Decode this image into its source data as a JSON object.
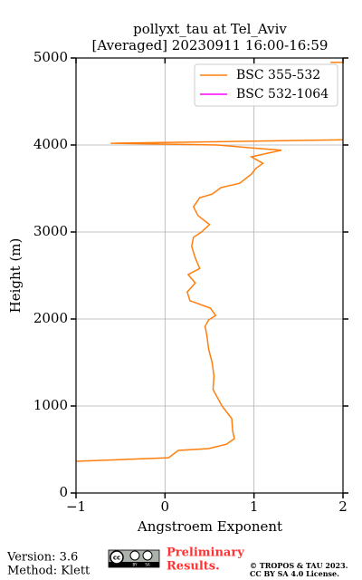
{
  "chart_data": {
    "type": "line",
    "title": [
      "pollyxt_tau at Tel_Aviv",
      "[Averaged] 20230911 16:00-16:59"
    ],
    "x_label": "Angstroem Exponent",
    "y_label": "Height (m)",
    "y": [
      365,
      405,
      490,
      510,
      560,
      625,
      710,
      855,
      1000,
      1190,
      1345,
      1500,
      1655,
      1810,
      1915,
      1990,
      2040,
      2125,
      2210,
      2310,
      2415,
      2510,
      2580,
      2700,
      2835,
      2940,
      3000,
      3085,
      3190,
      3290,
      3395,
      3435,
      3510,
      3560,
      3665,
      3730,
      3790,
      3865,
      3905,
      3940,
      3965,
      4000,
      4020,
      4040,
      4060,
      null,
      4950,
      4950
    ],
    "series": [
      {
        "name": "BSC 355-532",
        "color": "#ff7f0e",
        "values": [
          -1,
          0.04,
          0.15,
          0.49,
          0.69,
          0.78,
          0.76,
          0.75,
          0.64,
          0.54,
          0.55,
          0.53,
          0.49,
          0.47,
          0.45,
          0.49,
          0.57,
          0.51,
          0.28,
          0.25,
          0.34,
          0.26,
          0.39,
          0.34,
          0.3,
          0.32,
          0.41,
          0.5,
          0.37,
          0.32,
          0.39,
          0.53,
          0.63,
          0.84,
          0.97,
          1.02,
          1.1,
          0.97,
          1.15,
          1.31,
          0.99,
          0.59,
          -0.61,
          0.69,
          2.0,
          null,
          1.86,
          2.0
        ]
      },
      {
        "name": "BSC 532-1064",
        "color": "#ff00ff",
        "values": [
          null,
          null,
          null,
          null,
          null,
          null,
          null,
          null,
          null,
          null,
          null,
          null,
          null,
          null,
          null,
          null,
          null,
          null,
          null,
          null,
          null,
          null,
          null,
          null,
          null,
          null,
          null,
          null,
          null,
          null,
          null,
          null,
          null,
          null,
          null,
          null,
          null,
          null,
          null,
          null,
          null,
          null,
          null,
          null,
          null,
          null,
          null,
          null
        ]
      }
    ],
    "xlim": [
      -1,
      2
    ],
    "xticks": [
      {
        "value": -1,
        "label": "−1"
      },
      0,
      1,
      2
    ],
    "ylim": [
      0,
      5000
    ],
    "yticks": [
      0,
      1000,
      2000,
      3000,
      4000,
      5000
    ],
    "grid": true,
    "legend": "upper right"
  },
  "footer": {
    "version": "Version: 3.6",
    "method": "Method: Klett",
    "preliminary": [
      "Preliminary",
      "Results."
    ],
    "license": [
      "© TROPOS & TAU 2023.",
      "CC BY SA 4.0 License."
    ],
    "cc_icon": [
      "cc",
      "BY",
      "SA"
    ]
  }
}
